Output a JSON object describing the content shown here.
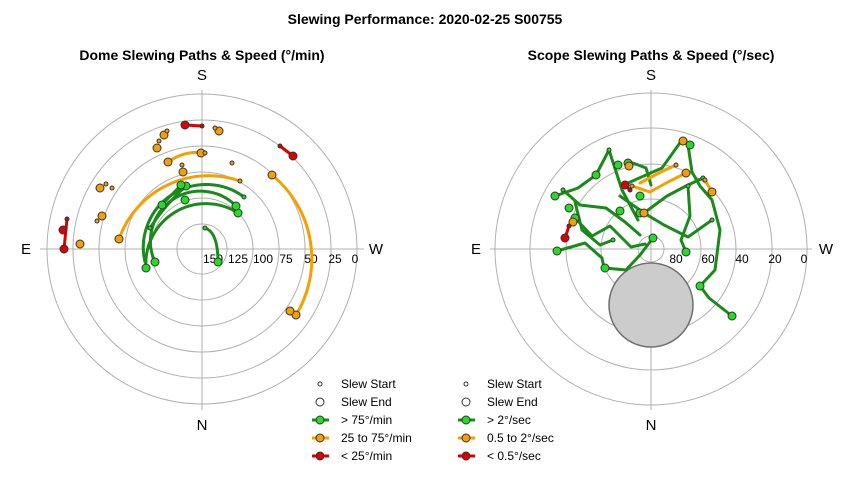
{
  "figure": {
    "title": "Slewing Performance: 2020-02-25 S00755"
  },
  "colors": {
    "fast": "#1a8a1a",
    "fast_marker": "#22dd22",
    "medium": "#f5a000",
    "slow": "#dd0000",
    "grid": "#b0b0b0",
    "exclusion_fill": "#cccccc",
    "exclusion_stroke": "#707070"
  },
  "chart_data": [
    {
      "type": "polar-path",
      "title": "Dome Slewing Paths & Speed (°/min)",
      "compass_labels": {
        "top": "S",
        "bottom": "N",
        "left": "E",
        "right": "W"
      },
      "radial_tick_labels": [
        "150",
        "125",
        "100",
        "75",
        "50",
        "25",
        "0"
      ],
      "grid": true,
      "legend": {
        "placement": "bottom-right",
        "entries": [
          {
            "label": "Slew Start",
            "kind": "start"
          },
          {
            "label": "Slew End",
            "kind": "end"
          },
          {
            "label": "> 75°/min",
            "kind": "fast"
          },
          {
            "label": "25 to 75°/min",
            "kind": "medium"
          },
          {
            "label": "< 25°/min",
            "kind": "slow"
          }
        ]
      }
    },
    {
      "type": "polar-path",
      "title": "Scope Slewing Paths & Speed (°/sec)",
      "compass_labels": {
        "top": "S",
        "bottom": "N",
        "left": "E",
        "right": "W"
      },
      "radial_tick_labels": [
        "80",
        "60",
        "40",
        "20",
        "0"
      ],
      "grid": true,
      "exclusion_zone": true,
      "legend": {
        "placement": "bottom-right",
        "entries": [
          {
            "label": "Slew Start",
            "kind": "start"
          },
          {
            "label": "Slew End",
            "kind": "end"
          },
          {
            "label": "> 2°/sec",
            "kind": "fast"
          },
          {
            "label": "0.5 to 2°/sec",
            "kind": "medium"
          },
          {
            "label": "< 0.5°/sec",
            "kind": "slow"
          }
        ]
      }
    }
  ]
}
